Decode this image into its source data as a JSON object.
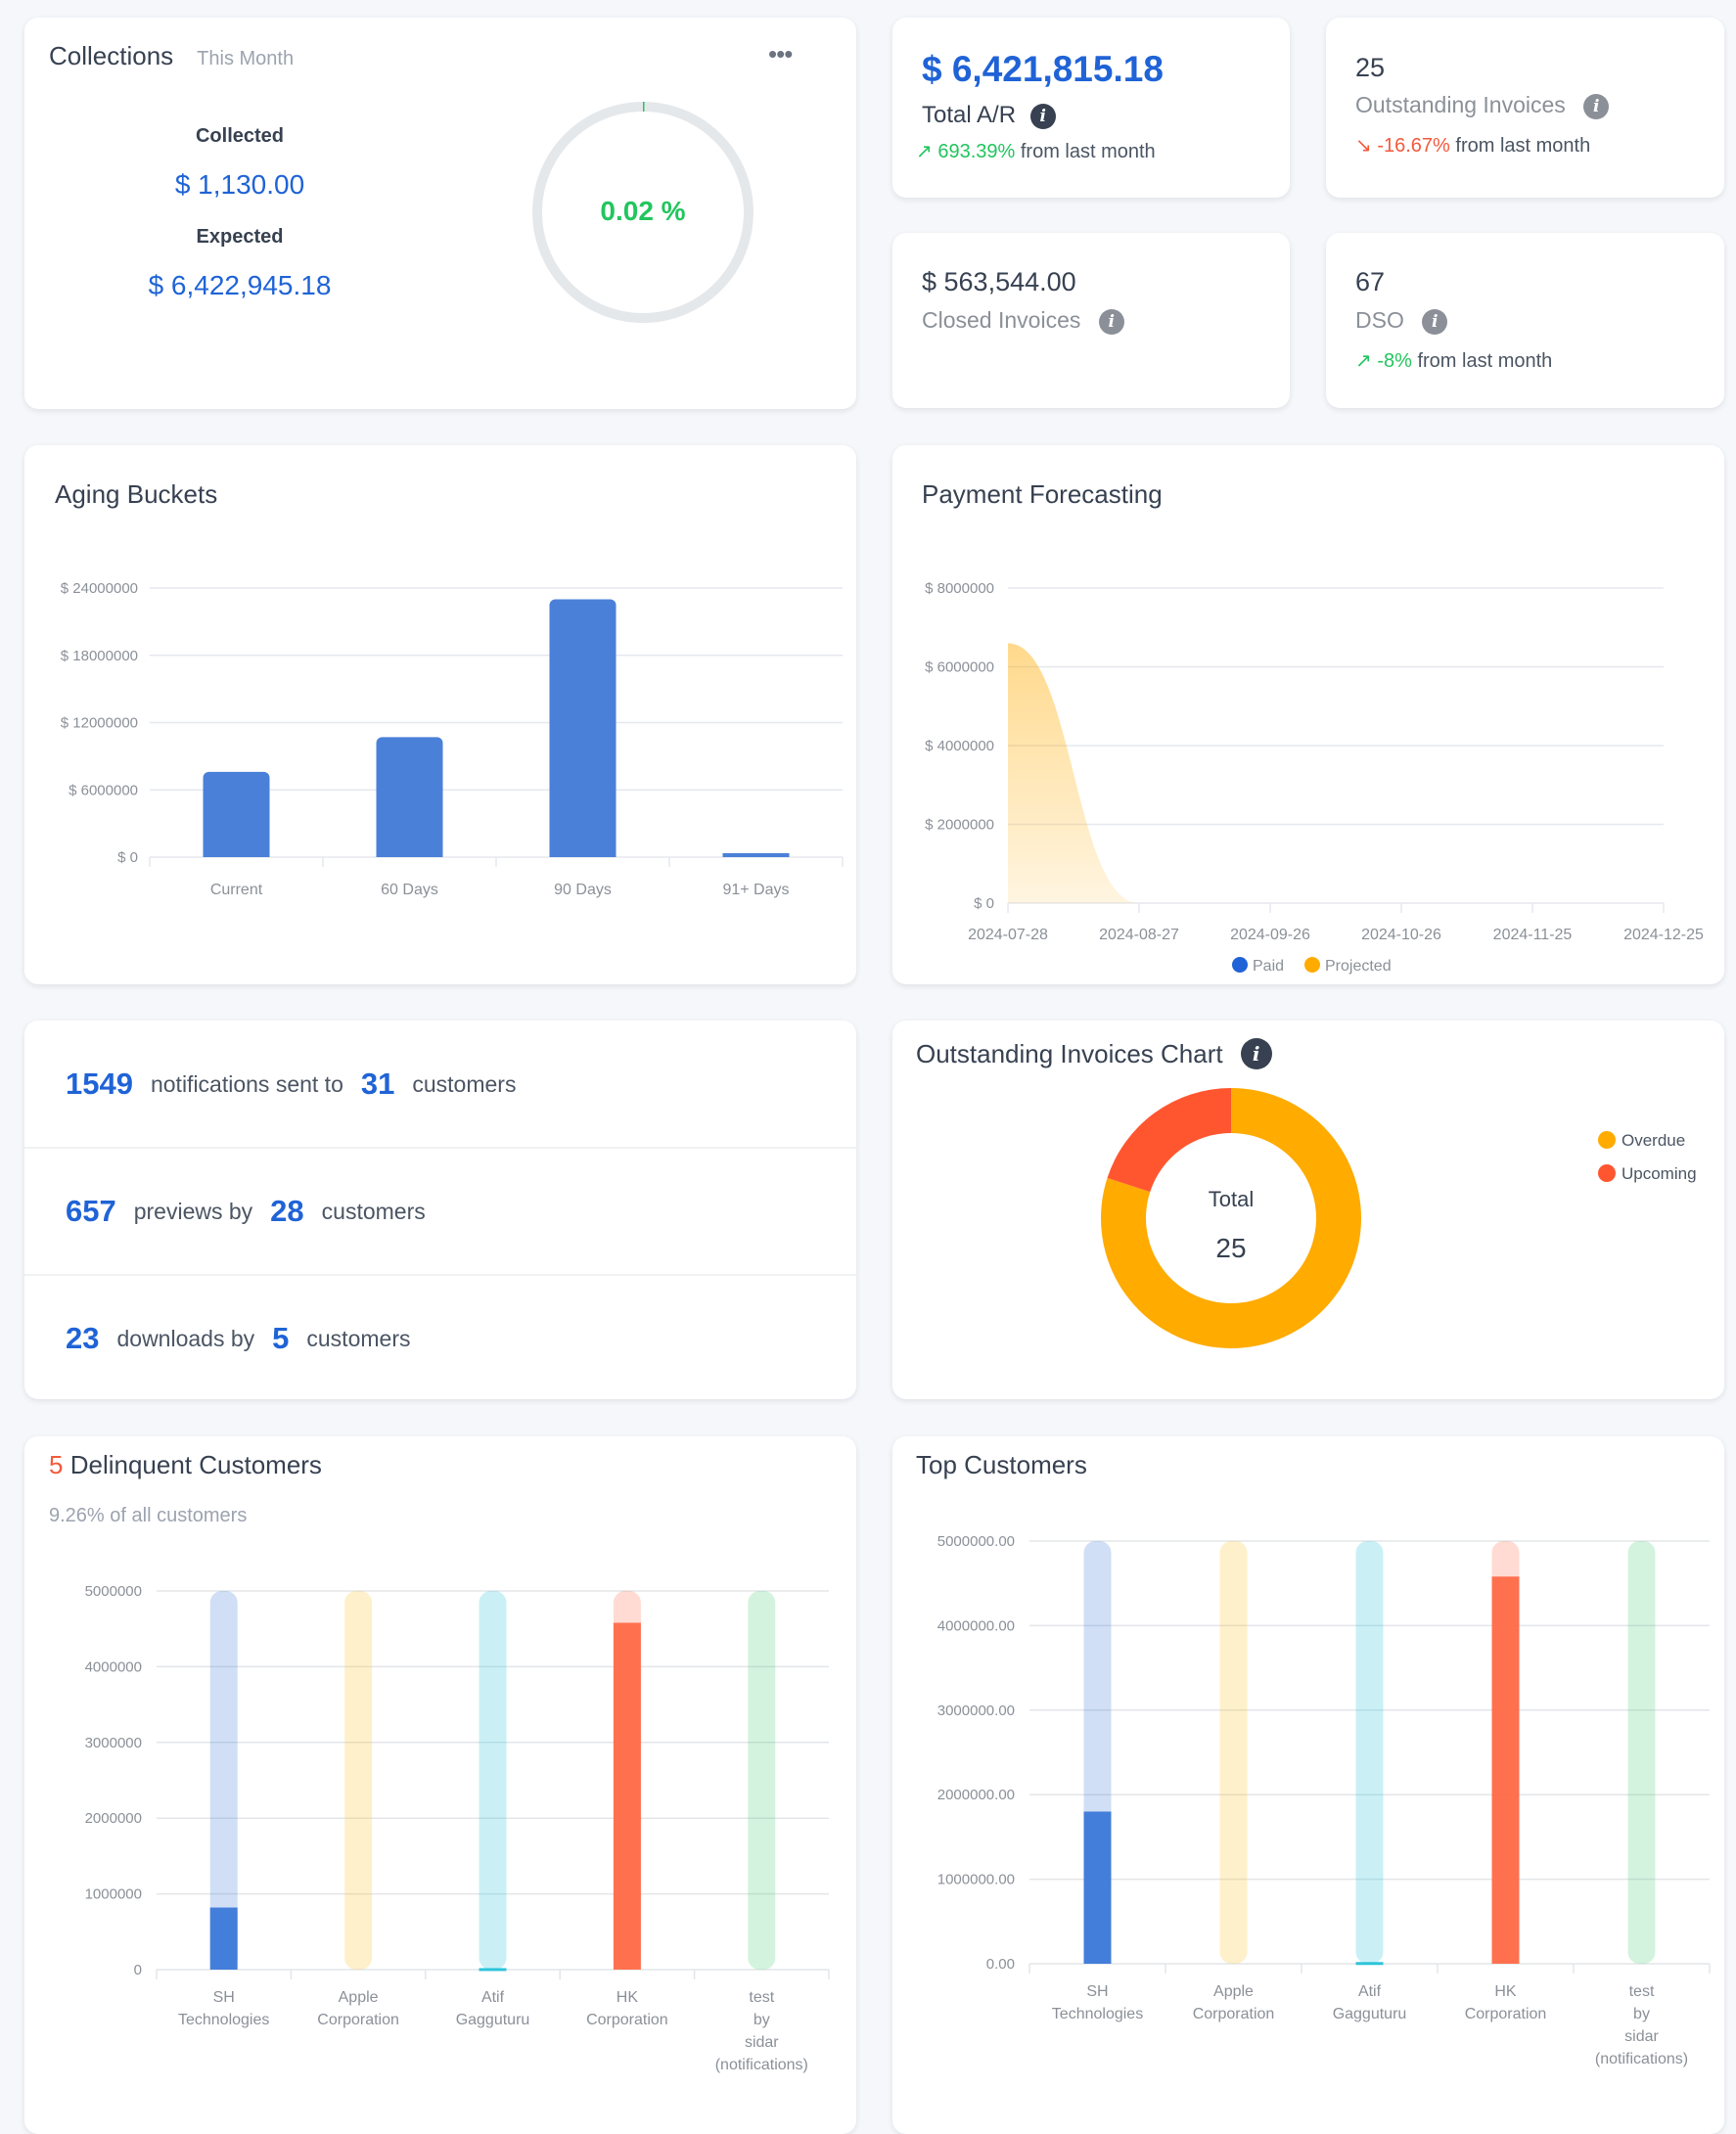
{
  "collections": {
    "title": "Collections",
    "period": "This Month",
    "menu_icon": "more-horizontal-icon",
    "collected_label": "Collected",
    "collected_value": "$ 1,130.00",
    "expected_label": "Expected",
    "expected_value": "$ 6,422,945.18",
    "percent_text": "0.02 %",
    "percent_value": 0.02
  },
  "stats": {
    "total_ar": {
      "value": "$ 6,421,815.18",
      "label": "Total A/R",
      "change": "693.39%",
      "change_suffix": "from last month",
      "trend": "up"
    },
    "outstanding": {
      "value": "25",
      "label": "Outstanding Invoices",
      "change": "-16.67%",
      "change_suffix": "from last month",
      "trend": "down"
    },
    "closed": {
      "value": "$ 563,544.00",
      "label": "Closed Invoices"
    },
    "dso": {
      "value": "67",
      "label": "DSO",
      "change": "-8%",
      "change_suffix": "from last month",
      "trend": "up"
    }
  },
  "notifications": {
    "rows": [
      {
        "count": "1549",
        "text": "notifications sent to",
        "customers": "31",
        "suffix": "customers"
      },
      {
        "count": "657",
        "text": "previews by",
        "customers": "28",
        "suffix": "customers"
      },
      {
        "count": "23",
        "text": "downloads by",
        "customers": "5",
        "suffix": "customers"
      }
    ]
  },
  "delinquent": {
    "count": "5",
    "title": "Delinquent Customers",
    "subtitle": "9.26% of all customers"
  },
  "top_customers": {
    "title": "Top Customers"
  },
  "colors": {
    "primary": "#1f63d6",
    "green": "#22c55e",
    "red": "#f25a3c",
    "overdue": "#ffab00",
    "upcoming": "#ff5630"
  },
  "chart_data": [
    {
      "id": "aging",
      "type": "bar",
      "title": "Aging Buckets",
      "categories": [
        "Current",
        "60 Days",
        "90 Days",
        "91+ Days"
      ],
      "values": [
        7600000,
        10700000,
        23000000,
        300000
      ],
      "yticks": [
        "$ 0",
        "$ 6000000",
        "$ 12000000",
        "$ 18000000",
        "$ 24000000"
      ],
      "ylim": [
        0,
        24000000
      ],
      "xlabel": "",
      "ylabel": "",
      "grid": true
    },
    {
      "id": "forecast",
      "type": "area",
      "title": "Payment Forecasting",
      "x": [
        "2024-07-28",
        "2024-08-27",
        "2024-09-26",
        "2024-10-26",
        "2024-11-25",
        "2024-12-25"
      ],
      "series": [
        {
          "name": "Paid",
          "color": "#1f63d6",
          "values": [
            0,
            0,
            0,
            0,
            0,
            0
          ]
        },
        {
          "name": "Projected",
          "color": "#ffab00",
          "values": [
            6600000,
            0,
            0,
            0,
            0,
            0
          ]
        }
      ],
      "yticks": [
        "$ 0",
        "$ 2000000",
        "$ 4000000",
        "$ 6000000",
        "$ 8000000"
      ],
      "ylim": [
        0,
        8000000
      ],
      "legend": "bottom-center",
      "grid": true
    },
    {
      "id": "outstanding_donut",
      "type": "pie",
      "title": "Outstanding Invoices Chart",
      "center_label": "Total",
      "center_value": "25",
      "slices": [
        {
          "name": "Overdue",
          "value": 20,
          "color": "#ffab00"
        },
        {
          "name": "Upcoming",
          "value": 5,
          "color": "#ff5630"
        }
      ],
      "legend": "top-right"
    },
    {
      "id": "delinquent_chart",
      "type": "bar",
      "categories": [
        [
          "SH",
          "Technologies"
        ],
        [
          "Apple",
          "Corporation"
        ],
        [
          "Atif",
          "Gagguturu"
        ],
        [
          "HK",
          "Corporation"
        ],
        [
          "test",
          "by",
          "sidar",
          "(notifications)"
        ]
      ],
      "values": [
        820000,
        0,
        20000,
        4580000,
        0
      ],
      "colors": [
        "#3b78d8",
        "#fbbf24",
        "#22c2d9",
        "#ff6a47",
        "#4ccc7a"
      ],
      "yticks": [
        "0",
        "1000000",
        "2000000",
        "3000000",
        "4000000",
        "5000000"
      ],
      "ylim": [
        0,
        5000000
      ],
      "grid": true
    },
    {
      "id": "top_customers_chart",
      "type": "bar",
      "categories": [
        [
          "SH",
          "Technologies"
        ],
        [
          "Apple",
          "Corporation"
        ],
        [
          "Atif",
          "Gagguturu"
        ],
        [
          "HK",
          "Corporation"
        ],
        [
          "test",
          "by",
          "sidar",
          "(notifications)"
        ]
      ],
      "values": [
        1800000,
        0,
        20000,
        4580000,
        0
      ],
      "colors": [
        "#3b78d8",
        "#fbbf24",
        "#22c2d9",
        "#ff6a47",
        "#4ccc7a"
      ],
      "yticks": [
        "0.00",
        "1000000.00",
        "2000000.00",
        "3000000.00",
        "4000000.00",
        "5000000.00"
      ],
      "ylim": [
        0,
        5000000
      ],
      "grid": true
    }
  ]
}
